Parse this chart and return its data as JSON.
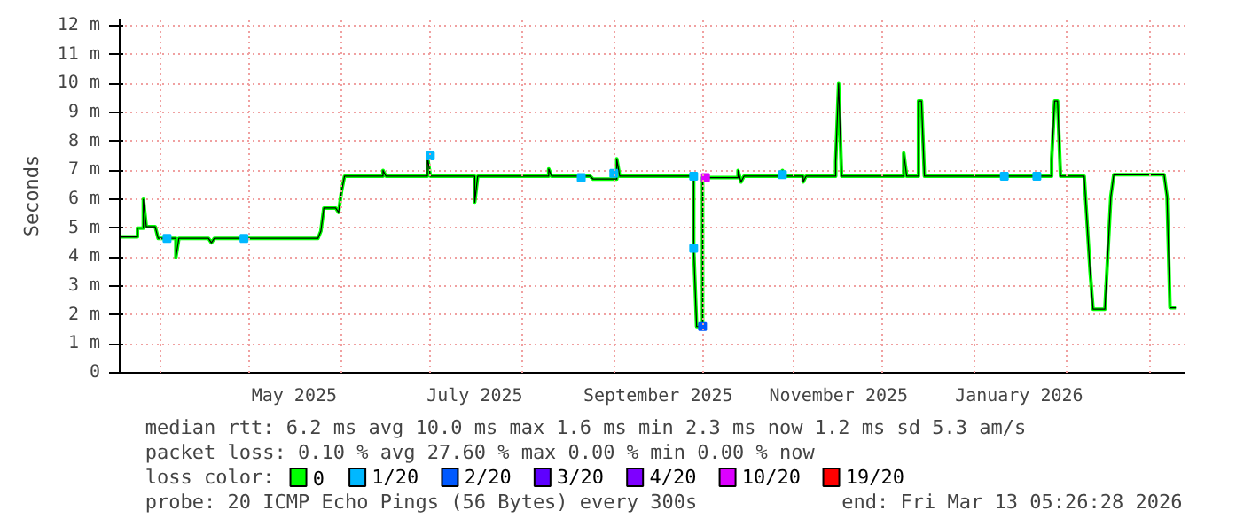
{
  "chart_data": {
    "type": "line",
    "ylabel": "Seconds",
    "xlim": [
      "2025-03-18",
      "2026-03-13T05:26"
    ],
    "xticks": [
      {
        "value": "2025-04-01",
        "label": null
      },
      {
        "value": "2025-05-01",
        "label": null
      },
      {
        "value": "2025-05-16",
        "label": "May 2025"
      },
      {
        "value": "2025-06-01",
        "label": null
      },
      {
        "value": "2025-07-01",
        "label": null
      },
      {
        "value": "2025-07-16",
        "label": "July 2025"
      },
      {
        "value": "2025-08-01",
        "label": null
      },
      {
        "value": "2025-09-01",
        "label": null
      },
      {
        "value": "2025-09-16",
        "label": "September 2025"
      },
      {
        "value": "2025-10-01",
        "label": null
      },
      {
        "value": "2025-11-01",
        "label": null
      },
      {
        "value": "2025-11-16",
        "label": "November 2025"
      },
      {
        "value": "2025-12-01",
        "label": null
      },
      {
        "value": "2026-01-01",
        "label": null
      },
      {
        "value": "2026-01-16",
        "label": "January 2026"
      },
      {
        "value": "2026-02-01",
        "label": null
      },
      {
        "value": "2026-03-01",
        "label": null
      }
    ],
    "ylim": [
      0,
      12.25
    ],
    "yticks": [
      0,
      {
        "value": 1,
        "label": "1 m"
      },
      {
        "value": 2,
        "label": "2 m"
      },
      {
        "value": 3,
        "label": "3 m"
      },
      {
        "value": 4,
        "label": "4 m"
      },
      {
        "value": 5,
        "label": "5 m"
      },
      {
        "value": 6,
        "label": "6 m"
      },
      {
        "value": 7,
        "label": "7 m"
      },
      {
        "value": 8,
        "label": "8 m"
      },
      {
        "value": 9,
        "label": "9 m"
      },
      {
        "value": 10,
        "label": "10 m"
      },
      {
        "value": 11,
        "label": "11 m"
      },
      {
        "value": 12,
        "label": "12 m"
      }
    ],
    "grid": true,
    "legend": "bottom",
    "legend_title": "loss color:",
    "series": [
      {
        "name": "0",
        "color": "#00ff00",
        "x": [
          "2025-03-18",
          "2025-03-24",
          "2025-03-24",
          "2025-03-26",
          "2025-03-26",
          "2025-03-27",
          "2025-03-30",
          "2025-03-31",
          "2025-04-06",
          "2025-04-06",
          "2025-04-07",
          "2025-04-17",
          "2025-04-18",
          "2025-04-19",
          "2025-05-24",
          "2025-05-25",
          "2025-05-26",
          "2025-05-30",
          "2025-05-31",
          "2025-06-01",
          "2025-06-02",
          "2025-06-15",
          "2025-06-15",
          "2025-06-16",
          "2025-06-30",
          "2025-06-30",
          "2025-07-01",
          "2025-07-16",
          "2025-07-16",
          "2025-07-17",
          "2025-08-10",
          "2025-08-10",
          "2025-08-11",
          "2025-08-24",
          "2025-08-25",
          "2025-09-02",
          "2025-09-02",
          "2025-09-03",
          "2025-09-28",
          "2025-09-28",
          "2025-09-29",
          "2025-10-01",
          "2025-10-01",
          "2025-10-13",
          "2025-10-13",
          "2025-10-14",
          "2025-10-15",
          "2025-10-28",
          "2025-10-28",
          "2025-10-29",
          "2025-11-04",
          "2025-11-04",
          "2025-11-05",
          "2025-11-15",
          "2025-11-15",
          "2025-11-16",
          "2025-11-17",
          "2025-12-08",
          "2025-12-08",
          "2025-12-09",
          "2025-12-13",
          "2025-12-13",
          "2025-12-14",
          "2025-12-15",
          "2026-01-27",
          "2026-01-27",
          "2026-01-28",
          "2026-01-29",
          "2026-01-30",
          "2026-02-07",
          "2026-02-09",
          "2026-02-10",
          "2026-02-14",
          "2026-02-16",
          "2026-02-17",
          "2026-03-06",
          "2026-03-07",
          "2026-03-08",
          "2026-03-10"
        ],
        "values": [
          4.7,
          4.7,
          5.0,
          5.0,
          6.0,
          5.05,
          5.05,
          4.65,
          4.65,
          4.0,
          4.65,
          4.65,
          4.5,
          4.65,
          4.65,
          4.9,
          5.7,
          5.7,
          5.55,
          6.3,
          6.8,
          6.8,
          7.0,
          6.8,
          6.8,
          7.5,
          6.8,
          6.8,
          5.9,
          6.8,
          6.8,
          7.05,
          6.8,
          6.8,
          6.7,
          6.7,
          7.4,
          6.8,
          6.8,
          4.3,
          1.6,
          1.6,
          6.75,
          6.75,
          7.0,
          6.6,
          6.8,
          6.8,
          7.0,
          6.8,
          6.8,
          6.6,
          6.8,
          6.8,
          7.3,
          10.0,
          6.8,
          6.8,
          7.6,
          6.8,
          6.8,
          9.4,
          9.4,
          6.8,
          6.8,
          7.4,
          9.4,
          9.4,
          6.8,
          6.8,
          3.5,
          2.2,
          2.2,
          6.1,
          6.85,
          6.85,
          6.1,
          2.25,
          2.25
        ]
      },
      {
        "name": "1/20",
        "color": "#00b8ff",
        "type": "scatter",
        "x": [
          "2025-04-03",
          "2025-04-29",
          "2025-07-01",
          "2025-08-21",
          "2025-09-01",
          "2025-09-28",
          "2025-09-28",
          "2025-10-28",
          "2026-01-11",
          "2026-01-22"
        ],
        "values": [
          4.65,
          4.65,
          7.5,
          6.75,
          6.9,
          6.8,
          4.3,
          6.85,
          6.8,
          6.8
        ]
      },
      {
        "name": "2/20",
        "color": "#0059ff",
        "type": "scatter",
        "x": [
          "2025-10-01"
        ],
        "values": [
          1.6
        ]
      },
      {
        "name": "3/20",
        "color": "#5e00ff",
        "type": "scatter"
      },
      {
        "name": "4/20",
        "color": "#7e00ff",
        "type": "scatter"
      },
      {
        "name": "10/20",
        "color": "#dd00ff",
        "type": "scatter",
        "x": [
          "2025-10-02"
        ],
        "values": [
          6.75
        ]
      },
      {
        "name": "19/20",
        "color": "#ff0000",
        "type": "scatter"
      }
    ],
    "annotations": [
      "median rtt:  6.2 ms avg  10.0 ms max  1.6 ms min  2.3 ms now  1.2 ms sd  5.3   am/s",
      "packet loss: 0.10 % avg  27.60 % max  0.00 % min  0.00 % now",
      "probe:       20 ICMP Echo Pings (56 Bytes) every 300s",
      "end: Fri Mar 13 05:26:28 2026"
    ]
  }
}
